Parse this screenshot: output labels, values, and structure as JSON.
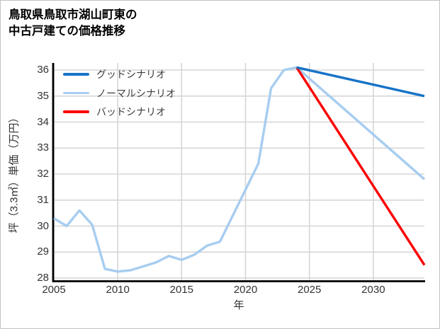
{
  "title": {
    "line1": "鳥取県鳥取市湖山町東の",
    "line2": "中古戸建ての価格推移"
  },
  "chart_data": {
    "type": "line",
    "title": "鳥取県鳥取市湖山町東の中古戸建ての価格推移",
    "xlabel": "年",
    "ylabel": "坪（3.3㎡）単価（万円）",
    "xlim": [
      2005,
      2034
    ],
    "ylim": [
      27.9,
      36.3
    ],
    "xticks": [
      2005,
      2010,
      2015,
      2020,
      2025,
      2030
    ],
    "yticks": [
      28,
      29,
      30,
      31,
      32,
      33,
      34,
      35,
      36
    ],
    "grid": true,
    "legend_position": "upper-left",
    "colors": {
      "grid": "#d6d6d6",
      "spine": "#000000",
      "tick_label": "#333333",
      "good": "#1673c8",
      "normal": "#a7cdf0",
      "bad": "#fa0000"
    },
    "series": [
      {
        "name": "グッドシナリオ",
        "color": "#1673c8",
        "x": [
          2024,
          2034
        ],
        "y": [
          36.1,
          35.0
        ]
      },
      {
        "name": "ノーマルシナリオ",
        "color": "#a7cdf0",
        "x": [
          2005,
          2006,
          2007,
          2008,
          2009,
          2010,
          2011,
          2012,
          2013,
          2014,
          2015,
          2016,
          2017,
          2018,
          2019,
          2020,
          2021,
          2022,
          2023,
          2024,
          2034
        ],
        "y": [
          30.3,
          30.0,
          30.6,
          30.05,
          28.35,
          28.25,
          28.3,
          28.45,
          28.6,
          28.85,
          28.7,
          28.9,
          29.25,
          29.4,
          30.4,
          31.4,
          32.4,
          35.3,
          36.0,
          36.1,
          31.8
        ]
      },
      {
        "name": "バッドシナリオ",
        "color": "#fa0000",
        "x": [
          2024,
          2034
        ],
        "y": [
          36.1,
          28.5
        ]
      }
    ]
  }
}
